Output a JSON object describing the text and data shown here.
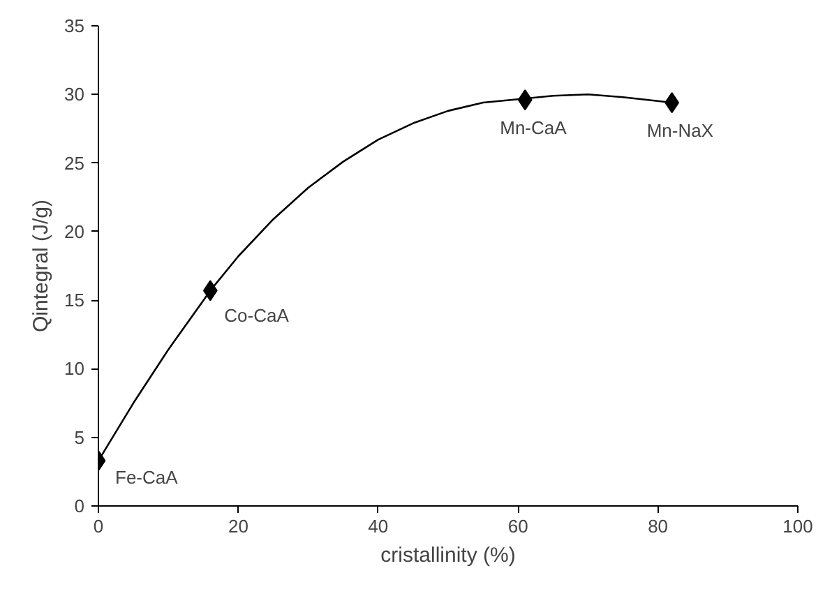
{
  "chart_data": {
    "type": "scatter",
    "xlabel": "cristallinity (%)",
    "ylabel": "Qintegral (J/g)",
    "xlim": [
      0,
      100
    ],
    "ylim": [
      0,
      35
    ],
    "xticks": [
      0,
      20,
      40,
      60,
      80,
      100
    ],
    "yticks": [
      0,
      5,
      10,
      15,
      20,
      25,
      30,
      35
    ],
    "grid": false,
    "marker": "diamond",
    "x": [
      0,
      16,
      61,
      82
    ],
    "series": [
      {
        "type": "line",
        "color": "#000000",
        "marker": "none",
        "line_style": "solid",
        "x": [
          0,
          5,
          10,
          16,
          20,
          25,
          30,
          35,
          40,
          45,
          50,
          55,
          61,
          65,
          70,
          75,
          82
        ],
        "values": [
          3.3,
          7.5,
          11.4,
          15.7,
          18.2,
          20.9,
          23.2,
          25.1,
          26.7,
          27.9,
          28.8,
          29.4,
          29.7,
          29.9,
          30.0,
          29.8,
          29.4
        ]
      },
      {
        "color": "#000000",
        "values": [
          3.3,
          15.7,
          29.6,
          29.4
        ]
      }
    ],
    "annotations": [
      {
        "text": "Fe-CaA",
        "x": 0,
        "y": 3.3
      },
      {
        "text": "Co-CaA",
        "x": 16,
        "y": 15.7
      },
      {
        "text": "Mn-CaA",
        "x": 61,
        "y": 29.6
      },
      {
        "text": "Mn-NaX",
        "x": 82,
        "y": 29.4
      }
    ]
  }
}
